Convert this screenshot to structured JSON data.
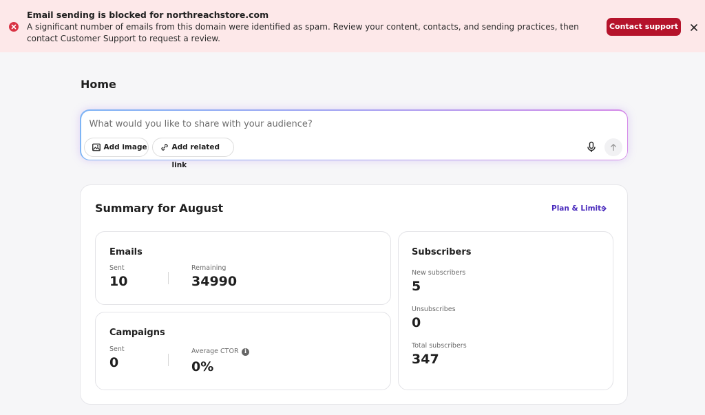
{
  "banner": {
    "title": "Email sending is blocked for northreachstore.com",
    "message": "A significant number of emails from this domain were identified as spam. Review your content, contacts, and sending practices, then contact Customer Support to request a review.",
    "contact_label": "Contact support",
    "icon": "error-icon",
    "accent": "#b5132b"
  },
  "page": {
    "title": "Home"
  },
  "composer": {
    "placeholder": "What would you like to share with your audience?",
    "add_image_label": "Add image",
    "add_link_label": "Add related link"
  },
  "summary": {
    "title": "Summary for August",
    "plan_link": "Plan & Limits",
    "emails": {
      "title": "Emails",
      "sent_label": "Sent",
      "sent_value": "10",
      "remaining_label": "Remaining",
      "remaining_value": "34990"
    },
    "campaigns": {
      "title": "Campaigns",
      "sent_label": "Sent",
      "sent_value": "0",
      "ctor_label": "Average CTOR",
      "ctor_value": "0%"
    },
    "subscribers": {
      "title": "Subscribers",
      "new_label": "New subscribers",
      "new_value": "5",
      "unsub_label": "Unsubscribes",
      "unsub_value": "0",
      "total_label": "Total subscribers",
      "total_value": "347"
    }
  }
}
